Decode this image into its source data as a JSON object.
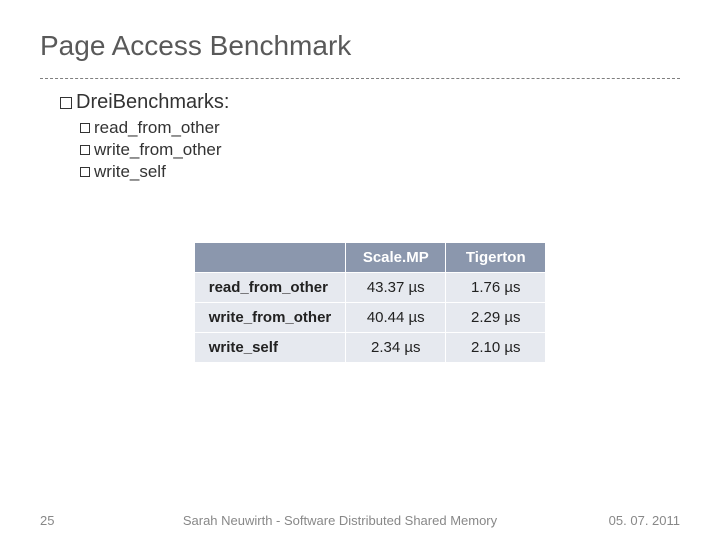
{
  "title": "Page Access Benchmark",
  "section": {
    "heading_prefix": "Drei ",
    "heading_rest": "Benchmarks:",
    "items": [
      "read_from_other",
      "write_from_other",
      "write_self"
    ]
  },
  "table": {
    "columns": [
      "Scale.MP",
      "Tigerton"
    ],
    "rows": [
      {
        "label": "read_from_other",
        "c1": "43.37 µs",
        "c2": "1.76 µs"
      },
      {
        "label": "write_from_other",
        "c1": "40.44 µs",
        "c2": "2.29 µs"
      },
      {
        "label": "write_self",
        "c1": "2.34 µs",
        "c2": "2.10 µs"
      }
    ],
    "header_bg": "#8b97ad",
    "cell_bg": "#e6e9ef"
  },
  "footer": {
    "page": "25",
    "center": "Sarah Neuwirth - Software Distributed Shared Memory",
    "date": "05. 07. 2011"
  }
}
